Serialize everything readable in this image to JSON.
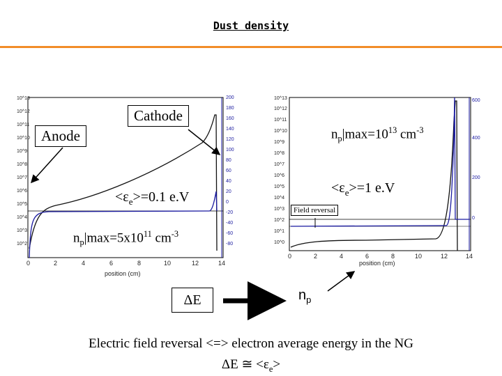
{
  "page_title": "Dust density",
  "left_plot": {
    "y_ticks_left": [
      "10^13",
      "10^12",
      "10^11",
      "10^10",
      "10^9",
      "10^8",
      "10^7",
      "10^6",
      "10^5",
      "10^4",
      "10^3",
      "10^2"
    ],
    "y_ticks_right": [
      "200",
      "180",
      "160",
      "140",
      "120",
      "100",
      "80",
      "60",
      "40",
      "20",
      "0",
      "-20",
      "-40",
      "-60",
      "-80"
    ],
    "x_ticks": [
      "0",
      "2",
      "4",
      "6",
      "8",
      "10",
      "12",
      "14"
    ],
    "x_label": "position (cm)",
    "cathode_label": "Cathode",
    "anode_label": "Anode",
    "energy_label": {
      "pre": "<ε",
      "sub": "e",
      "post": ">=0.1 e.V"
    },
    "np_label": {
      "pre": "n",
      "sub": "p",
      "mid": "|max=5x10",
      "sup": "11",
      "post": " cm",
      "sup2": "-3"
    }
  },
  "right_plot": {
    "y_ticks_left": [
      "10^13",
      "10^12",
      "10^11",
      "10^10",
      "10^9",
      "10^8",
      "10^7",
      "10^6",
      "10^5",
      "10^4",
      "10^3",
      "10^2",
      "10^1",
      "10^0"
    ],
    "y_ticks_right": [
      "600",
      "400",
      "200",
      "0"
    ],
    "x_ticks": [
      "0",
      "2",
      "4",
      "6",
      "8",
      "10",
      "12",
      "14"
    ],
    "x_label": "position (cm)",
    "field_reversal": "Field reversal",
    "energy_label": {
      "pre": "<ε",
      "sub": "e",
      "post": ">=1 e.V"
    },
    "np_label": {
      "pre": "n",
      "sub": "p",
      "mid": "|max=10",
      "sup": "13",
      "post": " cm",
      "sup2": "-3"
    }
  },
  "diagram": {
    "delta_e": "ΔE",
    "np_text": "n",
    "np_sub": "p"
  },
  "footer": {
    "line1": "Electric field reversal <=> electron average energy in the NG",
    "line2": "ΔE ≅ <ε",
    "line2_sub": "e",
    "line2_end": ">"
  },
  "colors": {
    "accent": "#f28c28",
    "plot_blue": "#1a1aa0"
  }
}
